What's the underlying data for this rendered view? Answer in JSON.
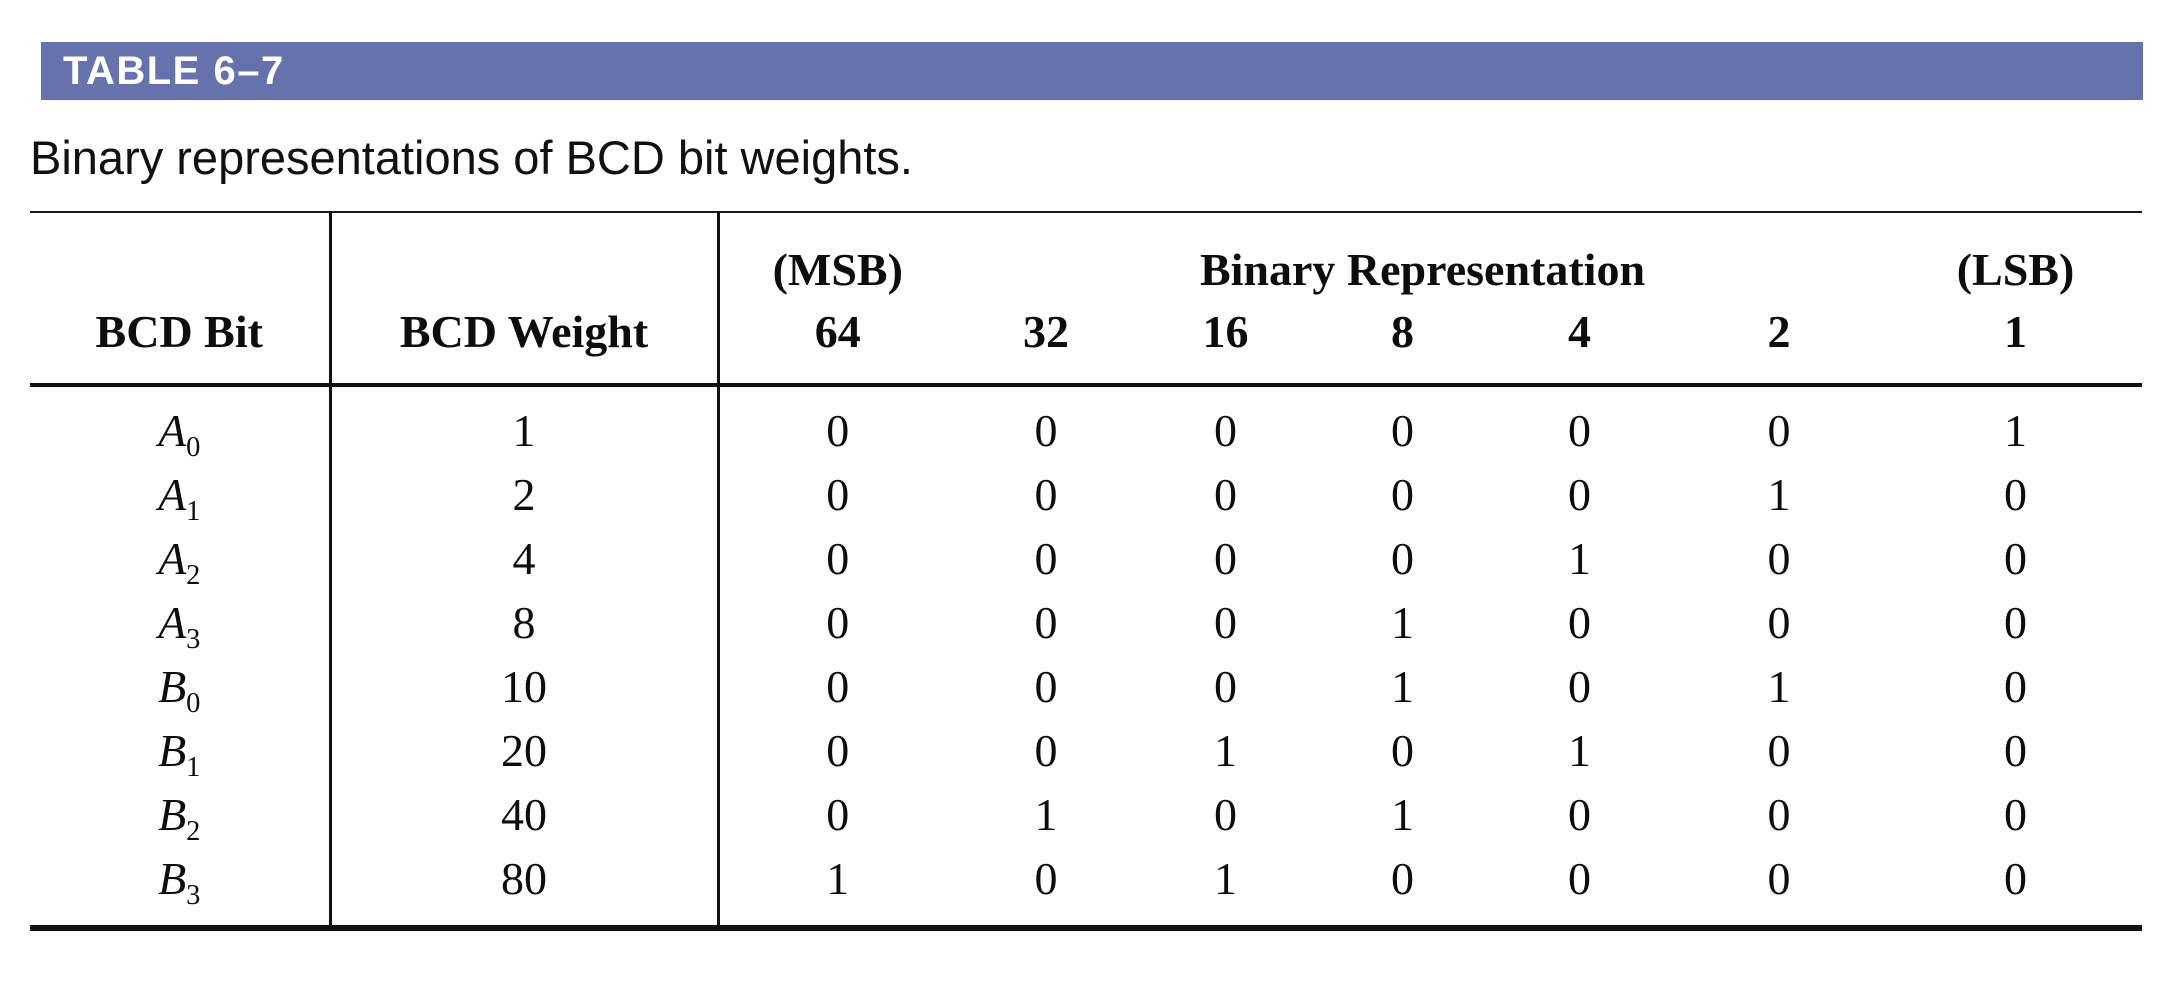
{
  "table_label": "TABLE 6–7",
  "caption": "Binary representations of BCD bit weights.",
  "colors": {
    "header_bar": "#6572ac"
  },
  "header": {
    "bcd_bit": "BCD Bit",
    "bcd_weight": "BCD Weight",
    "msb": "(MSB)",
    "binary_representation": "Binary Representation",
    "lsb": "(LSB)",
    "weights": [
      "64",
      "32",
      "16",
      "8",
      "4",
      "2",
      "1"
    ]
  },
  "rows": [
    {
      "letter": "A",
      "sub": "0",
      "weight": "1",
      "bits": [
        "0",
        "0",
        "0",
        "0",
        "0",
        "0",
        "1"
      ]
    },
    {
      "letter": "A",
      "sub": "1",
      "weight": "2",
      "bits": [
        "0",
        "0",
        "0",
        "0",
        "0",
        "1",
        "0"
      ]
    },
    {
      "letter": "A",
      "sub": "2",
      "weight": "4",
      "bits": [
        "0",
        "0",
        "0",
        "0",
        "1",
        "0",
        "0"
      ]
    },
    {
      "letter": "A",
      "sub": "3",
      "weight": "8",
      "bits": [
        "0",
        "0",
        "0",
        "1",
        "0",
        "0",
        "0"
      ]
    },
    {
      "letter": "B",
      "sub": "0",
      "weight": "10",
      "bits": [
        "0",
        "0",
        "0",
        "1",
        "0",
        "1",
        "0"
      ]
    },
    {
      "letter": "B",
      "sub": "1",
      "weight": "20",
      "bits": [
        "0",
        "0",
        "1",
        "0",
        "1",
        "0",
        "0"
      ]
    },
    {
      "letter": "B",
      "sub": "2",
      "weight": "40",
      "bits": [
        "0",
        "1",
        "0",
        "1",
        "0",
        "0",
        "0"
      ]
    },
    {
      "letter": "B",
      "sub": "3",
      "weight": "80",
      "bits": [
        "1",
        "0",
        "1",
        "0",
        "0",
        "0",
        "0"
      ]
    }
  ]
}
